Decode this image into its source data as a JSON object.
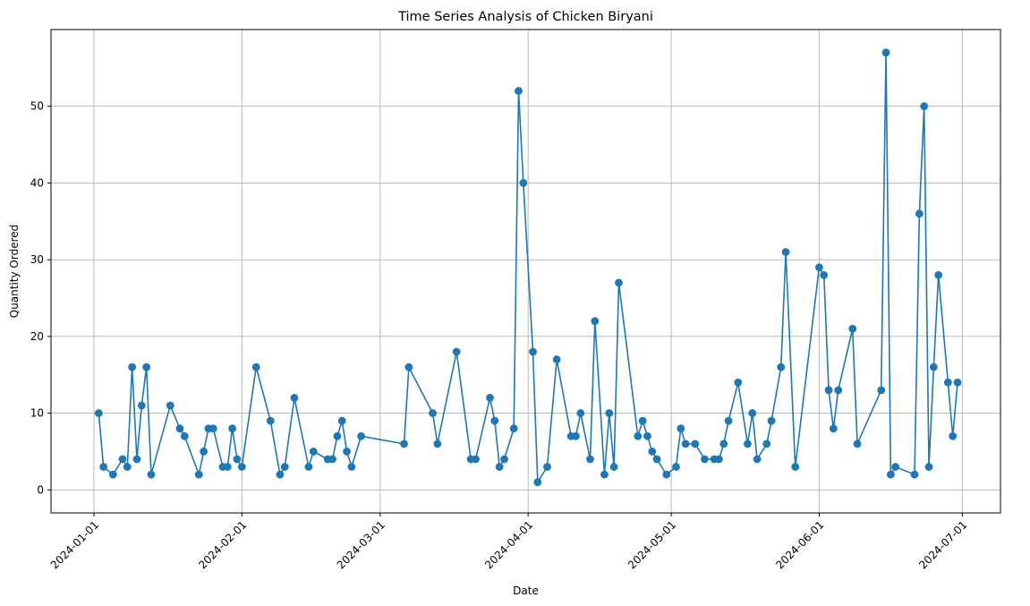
{
  "chart_data": {
    "type": "line",
    "title": "Time Series Analysis of Chicken Biryani",
    "xlabel": "Date",
    "ylabel": "Quantity Ordered",
    "x_axis": "date",
    "xlim": [
      "2023-12-23",
      "2024-07-09"
    ],
    "ylim": [
      -3,
      60
    ],
    "x_ticks": [
      "2024-01-01",
      "2024-02-01",
      "2024-03-01",
      "2024-04-01",
      "2024-05-01",
      "2024-06-01",
      "2024-07-01"
    ],
    "y_ticks": [
      0,
      10,
      20,
      30,
      40,
      50
    ],
    "grid": true,
    "marker": "circle",
    "color": "#1f77b4",
    "series": [
      {
        "x": [
          "2024-01-02",
          "2024-01-03",
          "2024-01-05",
          "2024-01-07",
          "2024-01-08",
          "2024-01-09",
          "2024-01-10",
          "2024-01-11",
          "2024-01-12",
          "2024-01-13",
          "2024-01-17",
          "2024-01-19",
          "2024-01-20",
          "2024-01-23",
          "2024-01-24",
          "2024-01-25",
          "2024-01-26",
          "2024-01-28",
          "2024-01-29",
          "2024-01-30",
          "2024-01-31",
          "2024-02-01",
          "2024-02-04",
          "2024-02-07",
          "2024-02-09",
          "2024-02-10",
          "2024-02-12",
          "2024-02-15",
          "2024-02-16",
          "2024-02-19",
          "2024-02-20",
          "2024-02-21",
          "2024-02-22",
          "2024-02-23",
          "2024-02-24",
          "2024-02-26",
          "2024-03-06",
          "2024-03-07",
          "2024-03-12",
          "2024-03-13",
          "2024-03-17",
          "2024-03-20",
          "2024-03-21",
          "2024-03-24",
          "2024-03-25",
          "2024-03-26",
          "2024-03-27",
          "2024-03-29",
          "2024-03-30",
          "2024-03-31",
          "2024-04-02",
          "2024-04-03",
          "2024-04-05",
          "2024-04-07",
          "2024-04-10",
          "2024-04-11",
          "2024-04-12",
          "2024-04-14",
          "2024-04-15",
          "2024-04-17",
          "2024-04-18",
          "2024-04-19",
          "2024-04-20",
          "2024-04-24",
          "2024-04-25",
          "2024-04-26",
          "2024-04-27",
          "2024-04-28",
          "2024-04-30",
          "2024-05-02",
          "2024-05-03",
          "2024-05-04",
          "2024-05-06",
          "2024-05-08",
          "2024-05-10",
          "2024-05-11",
          "2024-05-12",
          "2024-05-13",
          "2024-05-15",
          "2024-05-17",
          "2024-05-18",
          "2024-05-19",
          "2024-05-21",
          "2024-05-22",
          "2024-05-24",
          "2024-05-25",
          "2024-05-27",
          "2024-06-01",
          "2024-06-02",
          "2024-06-03",
          "2024-06-04",
          "2024-06-05",
          "2024-06-08",
          "2024-06-09",
          "2024-06-14",
          "2024-06-15",
          "2024-06-16",
          "2024-06-17",
          "2024-06-21",
          "2024-06-22",
          "2024-06-23",
          "2024-06-24",
          "2024-06-25",
          "2024-06-26",
          "2024-06-28",
          "2024-06-29",
          "2024-06-30"
        ],
        "y": [
          10,
          3,
          2,
          4,
          3,
          16,
          4,
          11,
          16,
          2,
          11,
          8,
          7,
          2,
          5,
          8,
          8,
          3,
          3,
          8,
          4,
          3,
          16,
          9,
          2,
          3,
          12,
          3,
          5,
          4,
          4,
          7,
          9,
          5,
          3,
          7,
          6,
          16,
          10,
          6,
          18,
          4,
          4,
          12,
          9,
          3,
          4,
          8,
          52,
          40,
          18,
          1,
          3,
          17,
          7,
          7,
          10,
          4,
          22,
          2,
          10,
          3,
          27,
          7,
          9,
          7,
          5,
          4,
          2,
          3,
          8,
          6,
          6,
          4,
          4,
          4,
          6,
          9,
          14,
          6,
          10,
          4,
          6,
          9,
          16,
          31,
          3,
          29,
          28,
          13,
          8,
          13,
          21,
          6,
          13,
          57,
          2,
          3,
          2,
          36,
          50,
          3,
          16,
          28,
          14,
          7,
          14
        ]
      }
    ]
  }
}
